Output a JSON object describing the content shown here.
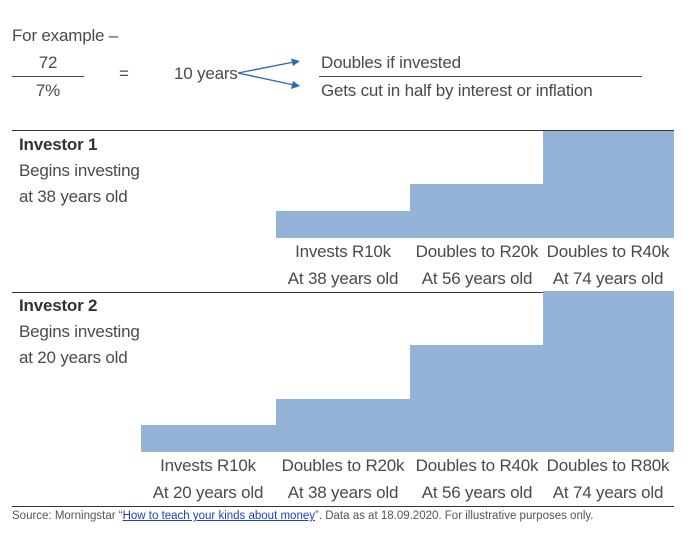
{
  "formula": {
    "intro": "For example –",
    "numerator": "72",
    "denominator": "7%",
    "equals": "=",
    "result": "10 years",
    "outcome_up": "Doubles if invested",
    "outcome_down": "Gets cut in half by interest or inflation"
  },
  "colors": {
    "bar": "#95b3d7",
    "rule": "#333333"
  },
  "investor1": {
    "title": "Investor 1",
    "desc_line1": "Begins investing",
    "desc_line2": "at 38 years old",
    "steps": [
      {
        "line1": "Invests R10k",
        "line2": "At 38 years old",
        "value_k": 10
      },
      {
        "line1": "Doubles to R20k",
        "line2": "At 56 years old",
        "value_k": 20
      },
      {
        "line1": "Doubles to R40k",
        "line2": "At 74 years old",
        "value_k": 40
      }
    ]
  },
  "investor2": {
    "title": "Investor 2",
    "desc_line1": "Begins investing",
    "desc_line2": "at 20 years old",
    "steps": [
      {
        "line1": "Invests R10k",
        "line2": "At 20 years old",
        "value_k": 10
      },
      {
        "line1": "Doubles to R20k",
        "line2": "At 38 years old",
        "value_k": 20
      },
      {
        "line1": "Doubles to R40k",
        "line2": "At 56 years old",
        "value_k": 40
      },
      {
        "line1": "Doubles to R80k",
        "line2": "At 74 years old",
        "value_k": 80
      }
    ]
  },
  "source": {
    "prefix": "Source: Morningstar “",
    "link_text": "How to teach your kinds about money",
    "suffix": "”. Data as at 18.09.2020. For illustrative purposes only."
  }
}
